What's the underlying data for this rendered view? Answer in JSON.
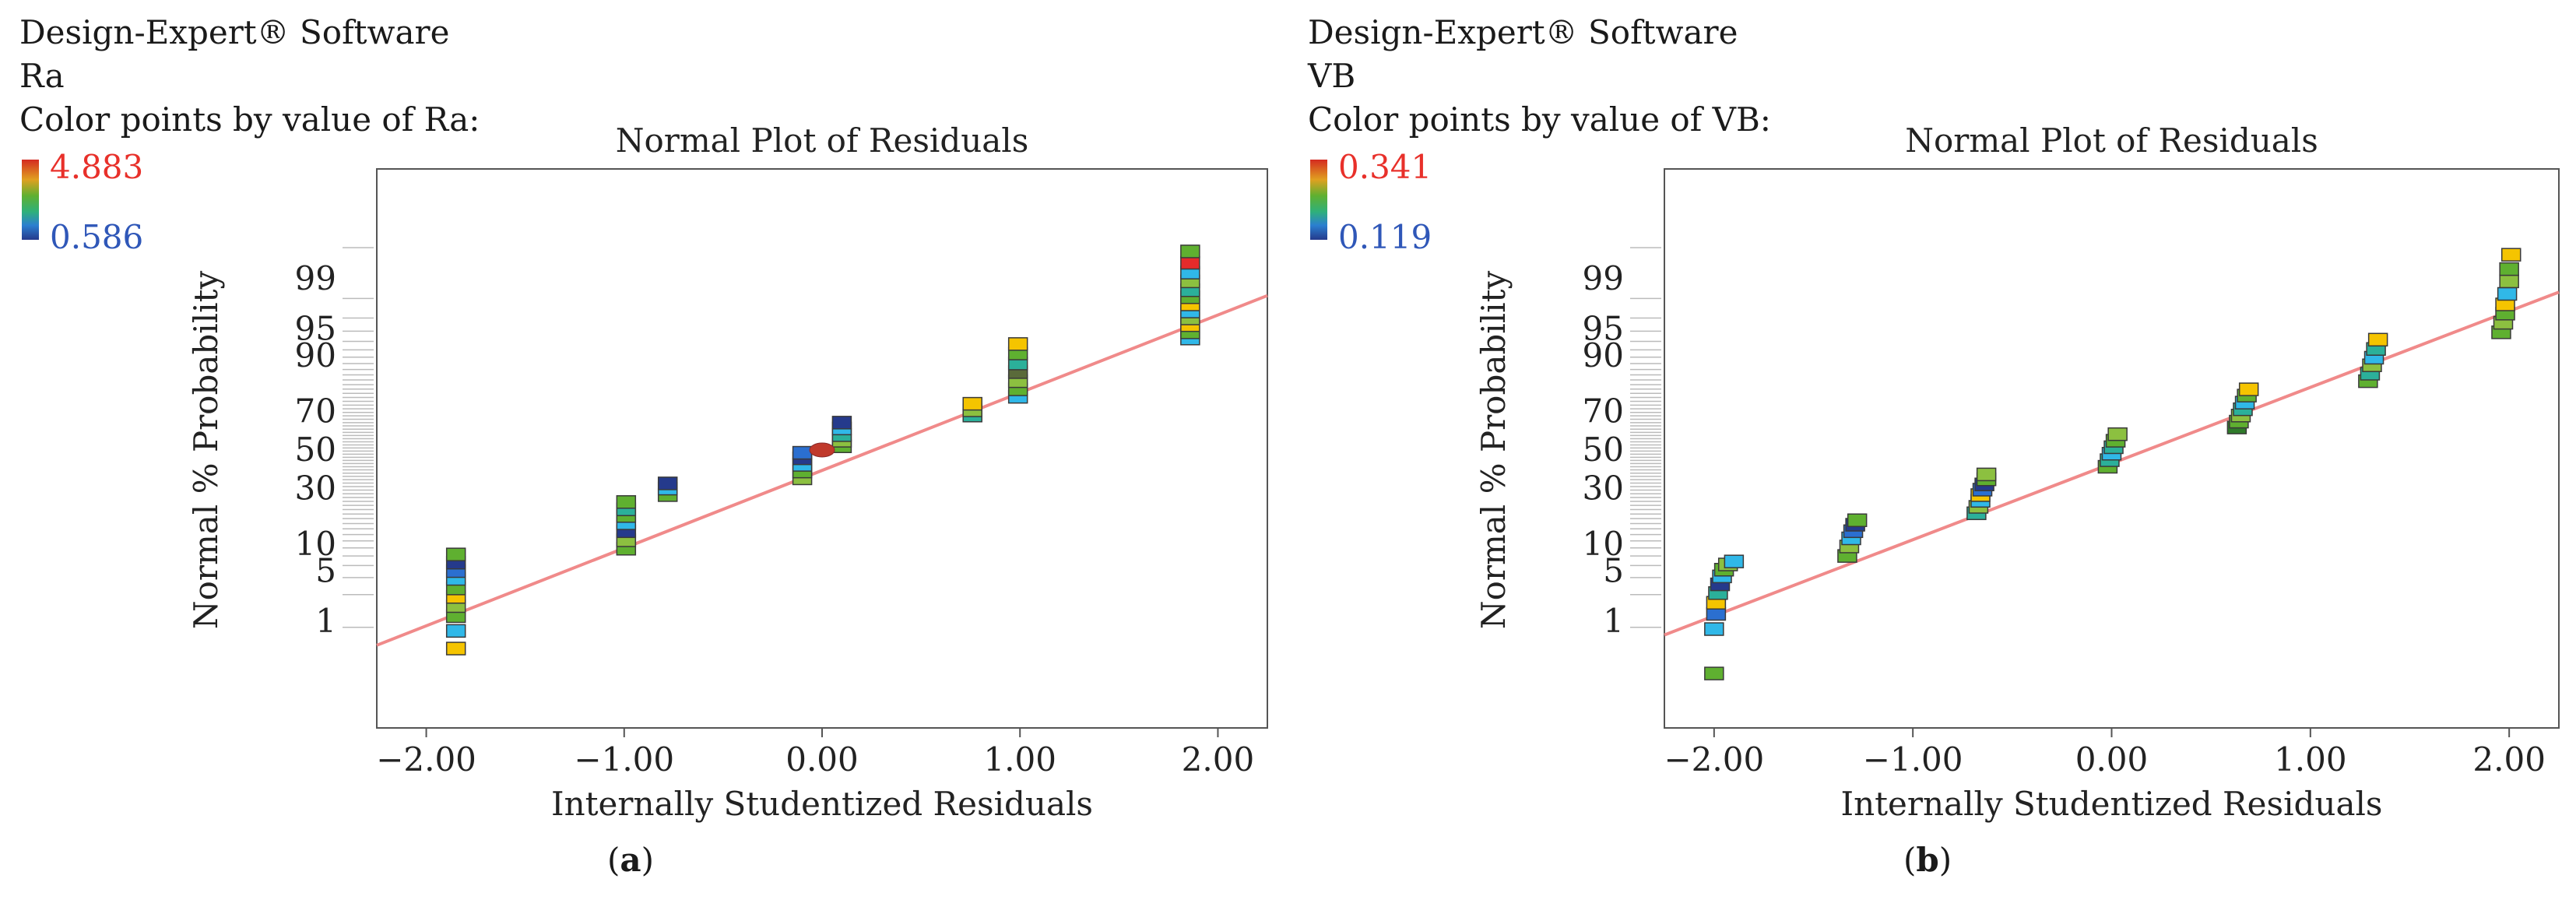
{
  "software": "Design-Expert® Software",
  "panels": [
    {
      "response": "Ra",
      "color_by": "Color points by value of Ra:",
      "legend_max": "4.883",
      "legend_min": "0.586",
      "sublabel": "(a)",
      "sublabel_letter": "a",
      "chart_data": {
        "type": "scatter",
        "title": "Normal Plot of Residuals",
        "xlabel": "Internally Studentized Residuals",
        "ylabel": "Normal % Probability",
        "xlim": [
          -2.25,
          2.25
        ],
        "x_ticks": [
          "-2.00",
          "-1.00",
          "0.00",
          "1.00",
          "2.00"
        ],
        "x_tick_values": [
          -2,
          -1,
          0,
          1,
          2
        ],
        "y_ticks": [
          "1",
          "5",
          "10",
          "30",
          "50",
          "70",
          "90",
          "95",
          "99"
        ],
        "y_tick_values": [
          1,
          5,
          10,
          30,
          50,
          70,
          90,
          95,
          99
        ],
        "line": {
          "x": [
            -2.25,
            2.25
          ],
          "y": [
            0.4,
            98.2
          ],
          "color": "#f08a8a"
        },
        "marker": {
          "x": 0.0,
          "y": 50.0,
          "color": "#c0392b"
        },
        "points": [
          {
            "x": -1.85,
            "y": 0.35,
            "color": "#f5c400"
          },
          {
            "x": -1.85,
            "y": 0.7,
            "color": "#30b8e8"
          },
          {
            "x": -1.85,
            "y": 1.2,
            "color": "#5fb030"
          },
          {
            "x": -1.85,
            "y": 1.7,
            "color": "#8cc040"
          },
          {
            "x": -1.85,
            "y": 2.3,
            "color": "#f5c400"
          },
          {
            "x": -1.85,
            "y": 3.0,
            "color": "#5fb030"
          },
          {
            "x": -1.85,
            "y": 4.0,
            "color": "#30b8e8"
          },
          {
            "x": -1.85,
            "y": 5.0,
            "color": "#2b6fd0"
          },
          {
            "x": -1.85,
            "y": 6.3,
            "color": "#253a8c"
          },
          {
            "x": -1.85,
            "y": 7.8,
            "color": "#5fb030"
          },
          {
            "x": -0.99,
            "y": 9.0,
            "color": "#5fb030"
          },
          {
            "x": -0.99,
            "y": 11.0,
            "color": "#8cc040"
          },
          {
            "x": -0.99,
            "y": 13.5,
            "color": "#253a8c"
          },
          {
            "x": -0.99,
            "y": 16.0,
            "color": "#30b8e8"
          },
          {
            "x": -0.99,
            "y": 18.5,
            "color": "#5fb030"
          },
          {
            "x": -0.99,
            "y": 21.0,
            "color": "#2bb09a"
          },
          {
            "x": -0.99,
            "y": 24.0,
            "color": "#5fb030"
          },
          {
            "x": -0.78,
            "y": 27.0,
            "color": "#5fb030"
          },
          {
            "x": -0.78,
            "y": 30.0,
            "color": "#30b8e8"
          },
          {
            "x": -0.78,
            "y": 32.5,
            "color": "#253a8c"
          },
          {
            "x": -0.1,
            "y": 35.0,
            "color": "#8cc040"
          },
          {
            "x": -0.1,
            "y": 38.5,
            "color": "#5fb030"
          },
          {
            "x": -0.1,
            "y": 42.0,
            "color": "#30b8e8"
          },
          {
            "x": -0.1,
            "y": 45.5,
            "color": "#253a8c"
          },
          {
            "x": -0.1,
            "y": 48.5,
            "color": "#2b6fd0"
          },
          {
            "x": 0.1,
            "y": 52.0,
            "color": "#5fb030"
          },
          {
            "x": 0.1,
            "y": 55.0,
            "color": "#8cc040"
          },
          {
            "x": 0.1,
            "y": 58.0,
            "color": "#2bb09a"
          },
          {
            "x": 0.1,
            "y": 61.5,
            "color": "#30b8e8"
          },
          {
            "x": 0.1,
            "y": 64.5,
            "color": "#253a8c"
          },
          {
            "x": 0.76,
            "y": 68.0,
            "color": "#2bb09a"
          },
          {
            "x": 0.76,
            "y": 70.5,
            "color": "#8cc040"
          },
          {
            "x": 0.76,
            "y": 73.5,
            "color": "#f5c400"
          },
          {
            "x": 0.99,
            "y": 76.5,
            "color": "#30b8e8"
          },
          {
            "x": 0.99,
            "y": 79.5,
            "color": "#5fb030"
          },
          {
            "x": 0.99,
            "y": 82.5,
            "color": "#8cc040"
          },
          {
            "x": 0.99,
            "y": 85.5,
            "color": "#5a6a3a"
          },
          {
            "x": 0.99,
            "y": 88.0,
            "color": "#2bb09a"
          },
          {
            "x": 0.99,
            "y": 90.5,
            "color": "#5fb030"
          },
          {
            "x": 0.99,
            "y": 92.5,
            "color": "#f5c400"
          },
          {
            "x": 1.86,
            "y": 93.5,
            "color": "#30b8e8"
          },
          {
            "x": 1.86,
            "y": 94.5,
            "color": "#5fb030"
          },
          {
            "x": 1.86,
            "y": 95.5,
            "color": "#f5c400"
          },
          {
            "x": 1.86,
            "y": 96.3,
            "color": "#8cc040"
          },
          {
            "x": 1.86,
            "y": 97.0,
            "color": "#30b8e8"
          },
          {
            "x": 1.86,
            "y": 97.6,
            "color": "#f5c400"
          },
          {
            "x": 1.86,
            "y": 98.1,
            "color": "#5fb030"
          },
          {
            "x": 1.86,
            "y": 98.5,
            "color": "#2bb09a"
          },
          {
            "x": 1.86,
            "y": 98.9,
            "color": "#8cc040"
          },
          {
            "x": 1.86,
            "y": 99.2,
            "color": "#30b8e8"
          },
          {
            "x": 1.86,
            "y": 99.45,
            "color": "#e52b2b"
          },
          {
            "x": 1.86,
            "y": 99.65,
            "color": "#5fb030"
          }
        ]
      }
    },
    {
      "response": "VB",
      "color_by": "Color points by value of VB:",
      "legend_max": "0.341",
      "legend_min": "0.119",
      "sublabel": "(b)",
      "sublabel_letter": "b",
      "chart_data": {
        "type": "scatter",
        "title": "Normal Plot of Residuals",
        "xlabel": "Internally Studentized Residuals",
        "ylabel": "Normal % Probability",
        "xlim": [
          -2.25,
          2.25
        ],
        "x_ticks": [
          "-2.00",
          "-1.00",
          "0.00",
          "1.00",
          "2.00"
        ],
        "x_tick_values": [
          -2,
          -1,
          0,
          1,
          2
        ],
        "y_ticks": [
          "1",
          "5",
          "10",
          "30",
          "50",
          "70",
          "90",
          "95",
          "99"
        ],
        "y_tick_values": [
          1,
          5,
          10,
          30,
          50,
          70,
          90,
          95,
          99
        ],
        "line": {
          "x": [
            -2.25,
            2.25
          ],
          "y": [
            0.6,
            98.4
          ],
          "color": "#f08a8a"
        },
        "points": [
          {
            "x": -2.0,
            "y": 0.12,
            "color": "#5fb030"
          },
          {
            "x": -2.0,
            "y": 0.75,
            "color": "#30b8e8"
          },
          {
            "x": -1.99,
            "y": 1.3,
            "color": "#2b6fd0"
          },
          {
            "x": -1.99,
            "y": 1.9,
            "color": "#f5c400"
          },
          {
            "x": -1.98,
            "y": 2.6,
            "color": "#2bb09a"
          },
          {
            "x": -1.97,
            "y": 3.4,
            "color": "#253a8c"
          },
          {
            "x": -1.96,
            "y": 4.3,
            "color": "#30b8e8"
          },
          {
            "x": -1.95,
            "y": 5.2,
            "color": "#5fb030"
          },
          {
            "x": -1.93,
            "y": 6.0,
            "color": "#8cc040"
          },
          {
            "x": -1.9,
            "y": 6.5,
            "color": "#30b8e8"
          },
          {
            "x": -1.33,
            "y": 7.5,
            "color": "#5fb030"
          },
          {
            "x": -1.32,
            "y": 9.5,
            "color": "#8cc040"
          },
          {
            "x": -1.31,
            "y": 11.5,
            "color": "#30b8e8"
          },
          {
            "x": -1.3,
            "y": 13.5,
            "color": "#2b6fd0"
          },
          {
            "x": -1.29,
            "y": 15.5,
            "color": "#253a8c"
          },
          {
            "x": -1.28,
            "y": 17.0,
            "color": "#5fb030"
          },
          {
            "x": -0.68,
            "y": 19.5,
            "color": "#2bb09a"
          },
          {
            "x": -0.67,
            "y": 22.0,
            "color": "#8cc040"
          },
          {
            "x": -0.66,
            "y": 24.5,
            "color": "#30b8e8"
          },
          {
            "x": -0.66,
            "y": 27.0,
            "color": "#f5c400"
          },
          {
            "x": -0.65,
            "y": 29.5,
            "color": "#2b6fd0"
          },
          {
            "x": -0.64,
            "y": 32.0,
            "color": "#253a8c"
          },
          {
            "x": -0.63,
            "y": 34.5,
            "color": "#5fb030"
          },
          {
            "x": -0.63,
            "y": 37.0,
            "color": "#8cc040"
          },
          {
            "x": -0.02,
            "y": 41.0,
            "color": "#5fb030"
          },
          {
            "x": -0.01,
            "y": 44.5,
            "color": "#2bb09a"
          },
          {
            "x": 0.0,
            "y": 48.0,
            "color": "#30b8e8"
          },
          {
            "x": 0.01,
            "y": 51.5,
            "color": "#2bb09a"
          },
          {
            "x": 0.02,
            "y": 55.0,
            "color": "#5fb030"
          },
          {
            "x": 0.03,
            "y": 58.5,
            "color": "#8cc040"
          },
          {
            "x": 0.63,
            "y": 62.0,
            "color": "#2f7a2a"
          },
          {
            "x": 0.64,
            "y": 65.0,
            "color": "#5fb030"
          },
          {
            "x": 0.65,
            "y": 68.0,
            "color": "#8cc040"
          },
          {
            "x": 0.66,
            "y": 71.0,
            "color": "#2bb09a"
          },
          {
            "x": 0.67,
            "y": 74.0,
            "color": "#30b8e8"
          },
          {
            "x": 0.68,
            "y": 77.0,
            "color": "#5fb030"
          },
          {
            "x": 0.69,
            "y": 79.5,
            "color": "#f5c400"
          },
          {
            "x": 1.29,
            "y": 82.5,
            "color": "#5fb030"
          },
          {
            "x": 1.3,
            "y": 85.0,
            "color": "#2bb09a"
          },
          {
            "x": 1.31,
            "y": 87.5,
            "color": "#8cc040"
          },
          {
            "x": 1.32,
            "y": 89.5,
            "color": "#30b8e8"
          },
          {
            "x": 1.33,
            "y": 91.5,
            "color": "#2bb09a"
          },
          {
            "x": 1.34,
            "y": 93.3,
            "color": "#f5c400"
          },
          {
            "x": 1.96,
            "y": 94.5,
            "color": "#5fb030"
          },
          {
            "x": 1.97,
            "y": 95.8,
            "color": "#8cc040"
          },
          {
            "x": 1.98,
            "y": 96.8,
            "color": "#5fb030"
          },
          {
            "x": 1.98,
            "y": 97.6,
            "color": "#f5c400"
          },
          {
            "x": 1.99,
            "y": 98.3,
            "color": "#30b8e8"
          },
          {
            "x": 2.0,
            "y": 98.9,
            "color": "#8cc040"
          },
          {
            "x": 2.0,
            "y": 99.3,
            "color": "#5fb030"
          },
          {
            "x": 2.01,
            "y": 99.6,
            "color": "#f5c400"
          }
        ]
      }
    }
  ]
}
